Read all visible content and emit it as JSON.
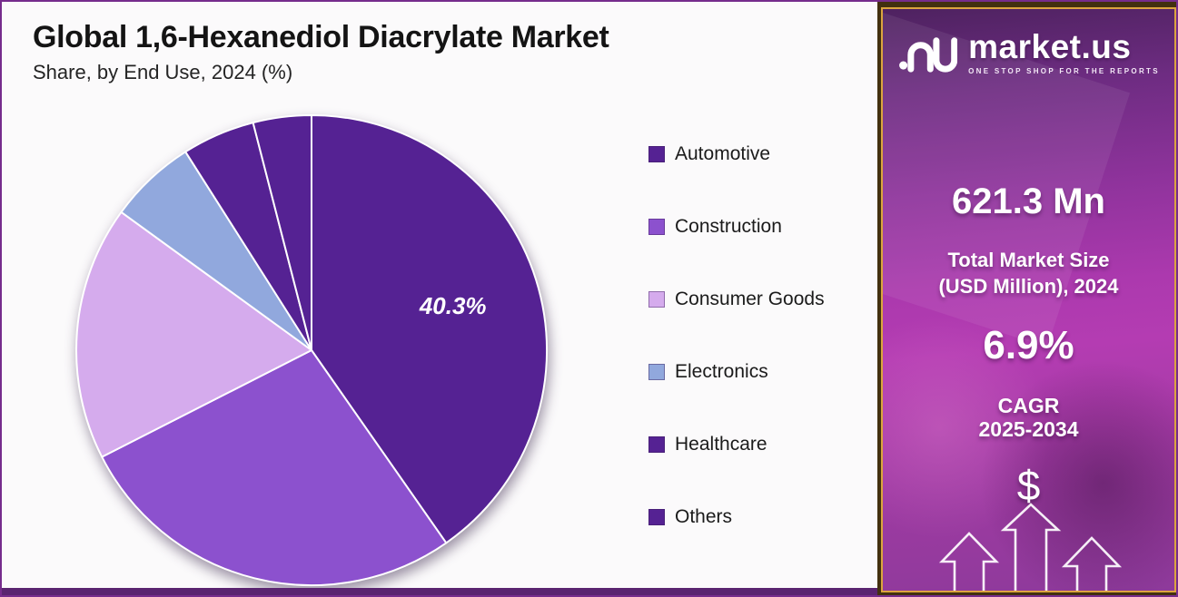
{
  "header": {
    "title": "Global 1,6-Hexanediol Diacrylate Market",
    "subtitle": "Share, by End Use, 2024 (%)"
  },
  "chart_data": {
    "type": "pie",
    "title": "Global 1,6-Hexanediol Diacrylate Market Share, by End Use, 2024 (%)",
    "unit": "%",
    "start_angle_deg": 0,
    "direction": "clockwise",
    "legend_position": "right",
    "series": [
      {
        "name": "Automotive",
        "value": 40.3,
        "color": "#552293",
        "label": "40.3%"
      },
      {
        "name": "Construction",
        "value": 27.2,
        "color": "#8C51CE",
        "label": ""
      },
      {
        "name": "Consumer Goods",
        "value": 17.5,
        "color": "#D5ABED",
        "label": ""
      },
      {
        "name": "Electronics",
        "value": 6.0,
        "color": "#91A8DD",
        "label": ""
      },
      {
        "name": "Healthcare",
        "value": 5.0,
        "color": "#552293",
        "label": ""
      },
      {
        "name": "Others",
        "value": 4.0,
        "color": "#552293",
        "label": ""
      }
    ],
    "labeled_values_note": "Only the Automotive slice label (40.3%) is printed on the chart; other slice values are estimated from slice angles."
  },
  "sidebar": {
    "logo_text": "market.us",
    "logo_tagline": "ONE STOP SHOP FOR THE REPORTS",
    "market_size_value": "621.3 Mn",
    "market_size_label_line1": "Total Market Size",
    "market_size_label_line2": "(USD Million), 2024",
    "cagr_value": "6.9%",
    "cagr_label_line1": "CAGR",
    "cagr_label_line2": "2025-2034",
    "dollar_symbol": "$"
  },
  "colors": {
    "page_border": "#762C8C",
    "bottom_bar": "#5A2470",
    "sidebar_frame": "#42300F",
    "sidebar_gold_border": "#DCA43F",
    "slice_separator": "#FFFFFF",
    "dark_purple": "#552293",
    "medium_purple": "#8C51CE",
    "light_lavender": "#D5ABED",
    "periwinkle_blue": "#91A8DD"
  }
}
